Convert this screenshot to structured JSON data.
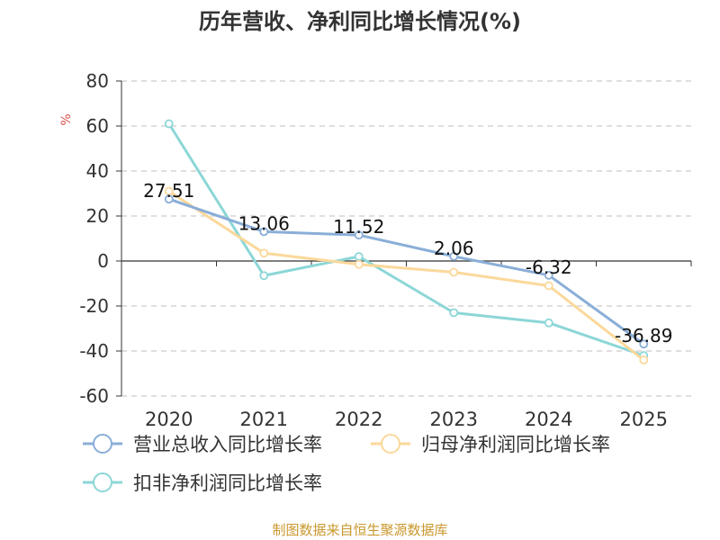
{
  "chart_data": {
    "type": "line",
    "title": "历年营收、净利同比增长情况(%)",
    "ylabel": "%",
    "categories": [
      "2020",
      "2021",
      "2022",
      "2023",
      "2024",
      "2025"
    ],
    "ylim": [
      -60,
      80
    ],
    "yticks": [
      80,
      60,
      40,
      20,
      0,
      -20,
      -40,
      -60
    ],
    "grid": true,
    "legend_position": "bottom",
    "series": [
      {
        "name": "营业总收入同比增长率",
        "color": "#8aaed8",
        "values": [
          27.51,
          13.06,
          11.52,
          2.06,
          -6.32,
          -36.89
        ],
        "labels": [
          "27.51",
          "13.06",
          "11.52",
          "2.06",
          "-6.32",
          "-36.89"
        ]
      },
      {
        "name": "归母净利润同比增长率",
        "color": "#fbd89a",
        "values": [
          31,
          3.5,
          -1.5,
          -5,
          -11,
          -44
        ]
      },
      {
        "name": "扣非净利润同比增长率",
        "color": "#8cd6d7",
        "values": [
          61,
          -6.5,
          2,
          -23,
          -27.5,
          -42
        ]
      }
    ]
  },
  "footer": {
    "source": "制图数据来自恒生聚源数据库"
  }
}
